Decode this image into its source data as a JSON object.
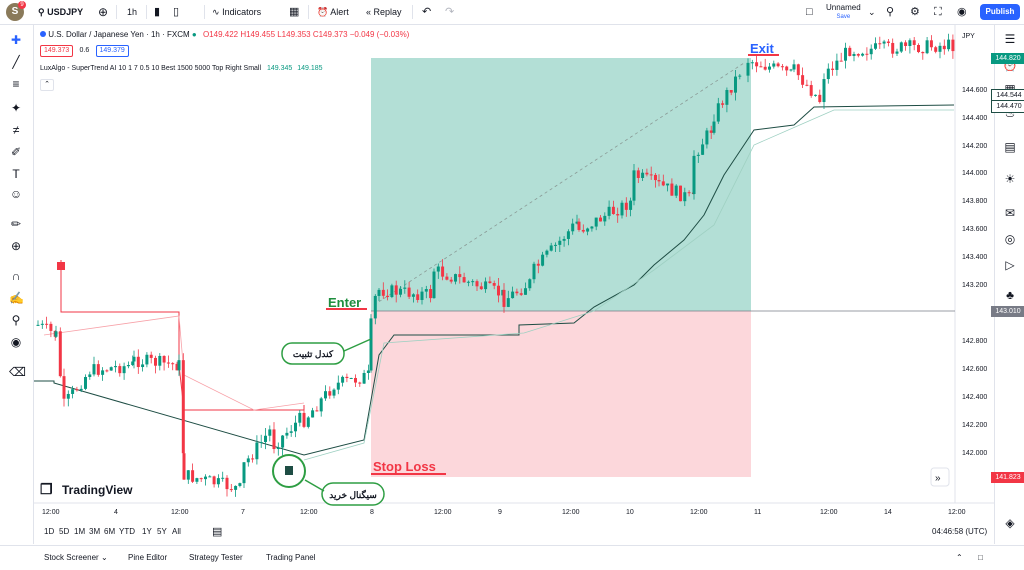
{
  "topbar": {
    "avatar_letter": "S",
    "avatar_badge": "9",
    "symbol": "USDJPY",
    "interval": "1h",
    "indicators_label": "Indicators",
    "alert_label": "Alert",
    "replay_label": "Replay",
    "layout_name": "Unnamed",
    "layout_status": "Save",
    "publish_label": "Publish"
  },
  "legend": {
    "title": "U.S. Dollar / Japanese Yen · 1h · FXCM",
    "ohlc": "O149.422 H149.455 L149.353 C149.373 −0.049 (−0.03%)",
    "bid": "149.373",
    "spread": "0.6",
    "ask": "149.379",
    "indicator": "LuxAlgo - SuperTrend AI 10 1 7 0.5 10 Best 1500 5000 Top Right Small",
    "ind_v1": "149.345",
    "ind_v2": "149.185"
  },
  "axis": {
    "currency": "JPY",
    "price_ticks": [
      "144.600",
      "144.400",
      "144.200",
      "144.000",
      "143.800",
      "143.600",
      "143.400",
      "143.200",
      "142.800",
      "142.600",
      "142.400",
      "142.200",
      "142.000"
    ],
    "time_ticks": [
      "12:00",
      "4",
      "12:00",
      "7",
      "12:00",
      "8",
      "12:00",
      "9",
      "12:00",
      "10",
      "12:00",
      "11",
      "12:00",
      "14",
      "12:00"
    ]
  },
  "price_labels": {
    "target": "144.820",
    "st1": "144.544",
    "st2": "144.470",
    "entry": "143.010",
    "stop": "141.823"
  },
  "annotations": {
    "exit": "Exit",
    "enter": "Enter",
    "stop_loss": "Stop Loss",
    "bubble_confirm": "کندل تثبیت",
    "bubble_signal": "سیگنال خرید",
    "watermark": "TradingView"
  },
  "ranges": [
    "1D",
    "5D",
    "1M",
    "3M",
    "6M",
    "YTD",
    "1Y",
    "5Y",
    "All"
  ],
  "clock": "04:46:58 (UTC)",
  "bottom_tabs": [
    "Stock Screener",
    "Pine Editor",
    "Strategy Tester",
    "Trading Panel"
  ],
  "colors": {
    "up": "#089981",
    "down": "#f23645",
    "accent": "#2962ff",
    "profit_zone": "#a6d9cf",
    "loss_zone": "#fcd3d7"
  }
}
